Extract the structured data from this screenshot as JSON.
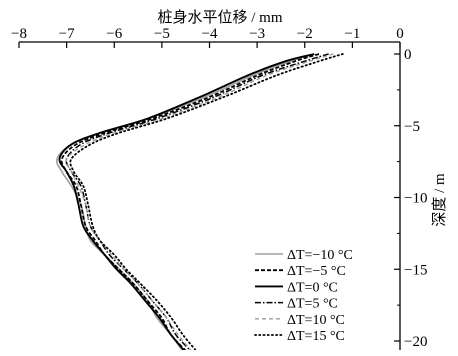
{
  "chart_data": {
    "type": "line",
    "xlabel": "桩身水平位移 / mm",
    "ylabel": "深度 / m",
    "xlim": [
      -8,
      0
    ],
    "ylim": [
      0,
      -21
    ],
    "xticks": [
      "−8",
      "−7",
      "−6",
      "−5",
      "−4",
      "−3",
      "−2",
      "−1",
      "0"
    ],
    "yticks": [
      "0",
      "−5",
      "−10",
      "−15",
      "−20"
    ],
    "legend_position": "lower-right",
    "series": [
      {
        "name": "ΔT=−10 °C",
        "style": "solid",
        "color": "#a0a0a0",
        "points": [
          [
            -1.8,
            0
          ],
          [
            -2.3,
            -0.5
          ],
          [
            -3.1,
            -1.5
          ],
          [
            -4.1,
            -3.0
          ],
          [
            -5.3,
            -4.5
          ],
          [
            -6.3,
            -5.5
          ],
          [
            -6.9,
            -6.3
          ],
          [
            -7.2,
            -7.3
          ],
          [
            -7.1,
            -8.2
          ],
          [
            -6.9,
            -9.2
          ],
          [
            -6.7,
            -10.5
          ],
          [
            -6.6,
            -12.0
          ],
          [
            -6.5,
            -13.0
          ],
          [
            -6.2,
            -14.0
          ],
          [
            -5.9,
            -15.0
          ],
          [
            -5.6,
            -16.0
          ],
          [
            -5.3,
            -17.2
          ],
          [
            -5.1,
            -18.4
          ],
          [
            -4.8,
            -19.6
          ],
          [
            -4.5,
            -21.0
          ]
        ]
      },
      {
        "name": "ΔT=−5 °C",
        "style": "dashed",
        "color": "#000000",
        "points": [
          [
            -1.7,
            0
          ],
          [
            -2.2,
            -0.5
          ],
          [
            -3.0,
            -1.5
          ],
          [
            -4.0,
            -3.0
          ],
          [
            -5.2,
            -4.5
          ],
          [
            -6.2,
            -5.5
          ],
          [
            -6.8,
            -6.3
          ],
          [
            -7.1,
            -7.3
          ],
          [
            -7.0,
            -8.2
          ],
          [
            -6.8,
            -9.2
          ],
          [
            -6.7,
            -10.5
          ],
          [
            -6.6,
            -12.0
          ],
          [
            -6.4,
            -13.0
          ],
          [
            -6.2,
            -14.0
          ],
          [
            -5.9,
            -15.0
          ],
          [
            -5.6,
            -16.0
          ],
          [
            -5.3,
            -17.2
          ],
          [
            -5.0,
            -18.4
          ],
          [
            -4.8,
            -19.6
          ],
          [
            -4.4,
            -21.0
          ]
        ]
      },
      {
        "name": "ΔT=0 °C",
        "style": "solid",
        "color": "#000000",
        "points": [
          [
            -1.8,
            0
          ],
          [
            -2.4,
            -0.5
          ],
          [
            -3.2,
            -1.5
          ],
          [
            -4.2,
            -3.0
          ],
          [
            -5.3,
            -4.5
          ],
          [
            -6.3,
            -5.5
          ],
          [
            -6.9,
            -6.3
          ],
          [
            -7.15,
            -7.3
          ],
          [
            -7.0,
            -8.2
          ],
          [
            -6.85,
            -9.2
          ],
          [
            -6.75,
            -10.5
          ],
          [
            -6.65,
            -12.0
          ],
          [
            -6.45,
            -13.0
          ],
          [
            -6.2,
            -14.0
          ],
          [
            -5.95,
            -15.0
          ],
          [
            -5.65,
            -16.0
          ],
          [
            -5.35,
            -17.2
          ],
          [
            -5.05,
            -18.4
          ],
          [
            -4.8,
            -19.6
          ],
          [
            -4.45,
            -21.0
          ]
        ]
      },
      {
        "name": "ΔT=5 °C",
        "style": "dashdot",
        "color": "#000000",
        "points": [
          [
            -1.5,
            0
          ],
          [
            -2.0,
            -0.5
          ],
          [
            -2.9,
            -1.5
          ],
          [
            -3.9,
            -3.0
          ],
          [
            -5.1,
            -4.5
          ],
          [
            -6.1,
            -5.5
          ],
          [
            -6.7,
            -6.3
          ],
          [
            -7.0,
            -7.3
          ],
          [
            -6.9,
            -8.2
          ],
          [
            -6.7,
            -9.2
          ],
          [
            -6.6,
            -10.5
          ],
          [
            -6.5,
            -12.0
          ],
          [
            -6.3,
            -13.0
          ],
          [
            -6.1,
            -14.0
          ],
          [
            -5.8,
            -15.0
          ],
          [
            -5.5,
            -16.0
          ],
          [
            -5.2,
            -17.2
          ],
          [
            -4.9,
            -18.4
          ],
          [
            -4.7,
            -19.6
          ],
          [
            -4.3,
            -21.0
          ]
        ]
      },
      {
        "name": "ΔT=10 °C",
        "style": "dashed-light",
        "color": "#a0a0a0",
        "points": [
          [
            -1.4,
            0
          ],
          [
            -1.9,
            -0.5
          ],
          [
            -2.8,
            -1.5
          ],
          [
            -3.8,
            -3.0
          ],
          [
            -5.0,
            -4.5
          ],
          [
            -6.0,
            -5.5
          ],
          [
            -6.6,
            -6.3
          ],
          [
            -7.0,
            -7.3
          ],
          [
            -6.9,
            -8.2
          ],
          [
            -6.75,
            -9.2
          ],
          [
            -6.6,
            -10.5
          ],
          [
            -6.5,
            -12.0
          ],
          [
            -6.3,
            -13.0
          ],
          [
            -6.05,
            -14.0
          ],
          [
            -5.8,
            -15.0
          ],
          [
            -5.5,
            -16.0
          ],
          [
            -5.2,
            -17.2
          ],
          [
            -4.9,
            -18.4
          ],
          [
            -4.65,
            -19.6
          ],
          [
            -4.3,
            -21.0
          ]
        ]
      },
      {
        "name": "ΔT=15 °C",
        "style": "dotted",
        "color": "#000000",
        "points": [
          [
            -1.2,
            0
          ],
          [
            -1.7,
            -0.5
          ],
          [
            -2.6,
            -1.5
          ],
          [
            -3.7,
            -3.0
          ],
          [
            -4.9,
            -4.5
          ],
          [
            -5.9,
            -5.5
          ],
          [
            -6.5,
            -6.3
          ],
          [
            -6.9,
            -7.3
          ],
          [
            -6.85,
            -8.2
          ],
          [
            -6.65,
            -9.2
          ],
          [
            -6.55,
            -10.5
          ],
          [
            -6.45,
            -12.0
          ],
          [
            -6.3,
            -13.0
          ],
          [
            -6.0,
            -14.0
          ],
          [
            -5.75,
            -15.0
          ],
          [
            -5.45,
            -16.0
          ],
          [
            -5.1,
            -17.2
          ],
          [
            -4.8,
            -18.4
          ],
          [
            -4.55,
            -19.6
          ],
          [
            -4.2,
            -21.0
          ]
        ]
      }
    ]
  }
}
